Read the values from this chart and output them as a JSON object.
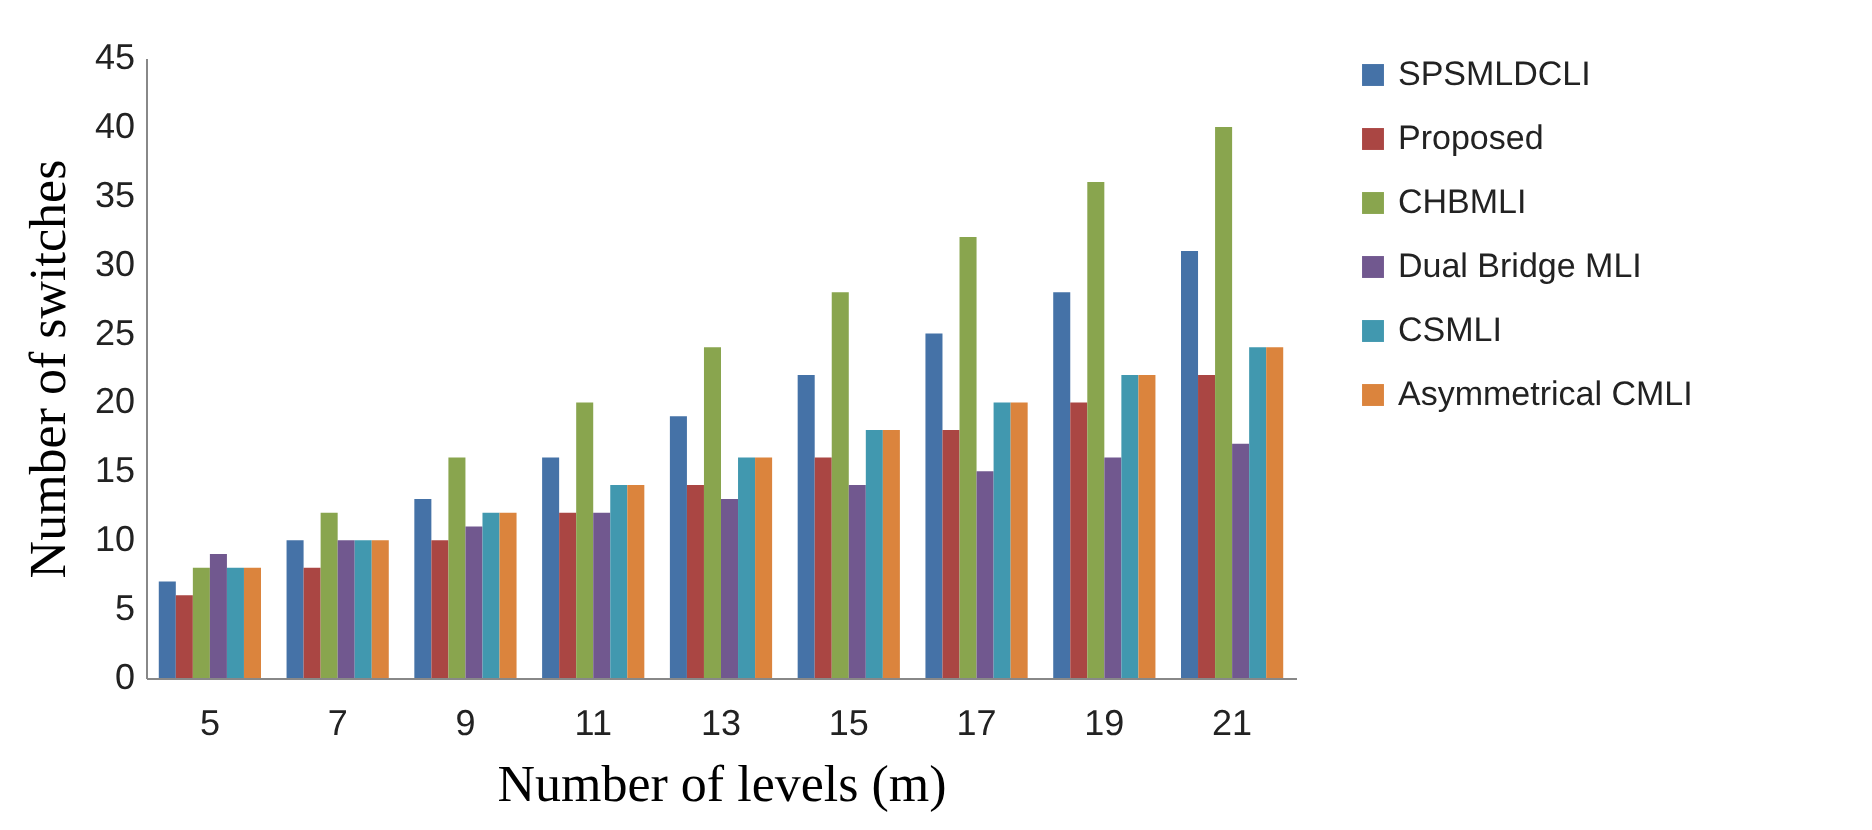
{
  "chart_data": {
    "type": "bar",
    "xlabel": "Number of  levels (m)",
    "ylabel": "Number of switches",
    "categories": [
      "5",
      "7",
      "9",
      "11",
      "13",
      "15",
      "17",
      "19",
      "21"
    ],
    "series": [
      {
        "name": "SPSMLDCLI",
        "color": "#4572a7",
        "values": [
          7,
          10,
          13,
          16,
          19,
          22,
          25,
          28,
          31
        ]
      },
      {
        "name": "Proposed",
        "color": "#aa4643",
        "values": [
          6,
          8,
          10,
          12,
          14,
          16,
          18,
          20,
          22
        ]
      },
      {
        "name": "CHBMLI",
        "color": "#89a54e",
        "values": [
          8,
          12,
          16,
          20,
          24,
          28,
          32,
          36,
          40
        ]
      },
      {
        "name": "Dual Bridge MLI",
        "color": "#71588f",
        "values": [
          9,
          10,
          11,
          12,
          13,
          14,
          15,
          16,
          17
        ]
      },
      {
        "name": "CSMLI",
        "color": "#4198af",
        "values": [
          8,
          10,
          12,
          14,
          16,
          18,
          20,
          22,
          24
        ]
      },
      {
        "name": "Asymmetrical CMLI",
        "color": "#db843d",
        "values": [
          8,
          10,
          12,
          14,
          16,
          18,
          20,
          22,
          24
        ]
      }
    ],
    "ylim": [
      0,
      45
    ],
    "yticks": [
      0,
      5,
      10,
      15,
      20,
      25,
      30,
      35,
      40,
      45
    ],
    "grid": false,
    "legend": "right"
  }
}
